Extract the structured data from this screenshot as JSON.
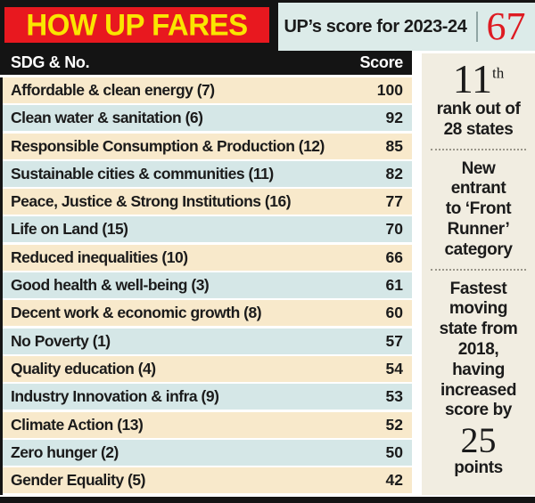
{
  "header": {
    "title": "HOW UP FARES",
    "score_label": "UP’s score for 2023-24",
    "score_value": "67"
  },
  "table": {
    "col_goal": "SDG & No.",
    "col_score": "Score",
    "rows": [
      {
        "label": "Affordable & clean energy (7)",
        "score": "100"
      },
      {
        "label": "Clean water & sanitation (6)",
        "score": "92"
      },
      {
        "label": "Responsible Consumption & Production (12)",
        "score": "85"
      },
      {
        "label": "Sustainable cities & communities (11)",
        "score": "82"
      },
      {
        "label": "Peace, Justice & Strong Institutions (16)",
        "score": "77"
      },
      {
        "label": "Life on Land (15)",
        "score": "70"
      },
      {
        "label": "Reduced inequalities (10)",
        "score": "66"
      },
      {
        "label": "Good health & well-being (3)",
        "score": "61"
      },
      {
        "label": "Decent work & economic growth (8)",
        "score": "60"
      },
      {
        "label": "No Poverty (1)",
        "score": "57"
      },
      {
        "label": "Quality education (4)",
        "score": "54"
      },
      {
        "label": "Industry Innovation & infra (9)",
        "score": "53"
      },
      {
        "label": "Climate Action (13)",
        "score": "52"
      },
      {
        "label": "Zero hunger (2)",
        "score": "50"
      },
      {
        "label": "Gender Equality (5)",
        "score": "42"
      }
    ]
  },
  "sidebar": {
    "rank_number": "11",
    "rank_suffix": "th",
    "rank_text": "rank out of\n28 states",
    "entrant_text": "New\nentrant\nto ‘Front\nRunner’\ncategory",
    "fastest_text": "Fastest\nmoving\nstate from\n2018,\nhaving\nincreased\nscore by",
    "points_number": "25",
    "points_label": "points"
  },
  "colors": {
    "banner_bg": "#e8181f",
    "banner_text": "#fae500",
    "frame_black": "#141414",
    "score_box_bg": "#dcebe9",
    "score_value_red": "#de1b22",
    "row_cream": "#f8e9cb",
    "row_blue": "#d5e7e7",
    "sidebar_bg": "#f1ede1"
  },
  "chart_data": {
    "type": "table",
    "title": "HOW UP FARES",
    "subtitle": "UP’s score for 2023-24: 67",
    "columns": [
      "SDG & No.",
      "Score"
    ],
    "categories": [
      "Affordable & clean energy (7)",
      "Clean water & sanitation (6)",
      "Responsible Consumption & Production (12)",
      "Sustainable cities & communities (11)",
      "Peace, Justice & Strong Institutions (16)",
      "Life on Land (15)",
      "Reduced inequalities (10)",
      "Good health & well-being (3)",
      "Decent work & economic growth (8)",
      "No Poverty (1)",
      "Quality education (4)",
      "Industry Innovation & infra (9)",
      "Climate Action (13)",
      "Zero hunger (2)",
      "Gender Equality (5)"
    ],
    "values": [
      100,
      92,
      85,
      82,
      77,
      70,
      66,
      61,
      60,
      57,
      54,
      53,
      52,
      50,
      42
    ],
    "annotations": [
      "11th rank out of 28 states",
      "New entrant to ‘Front Runner’ category",
      "Fastest moving state from 2018, having increased score by 25 points"
    ]
  }
}
